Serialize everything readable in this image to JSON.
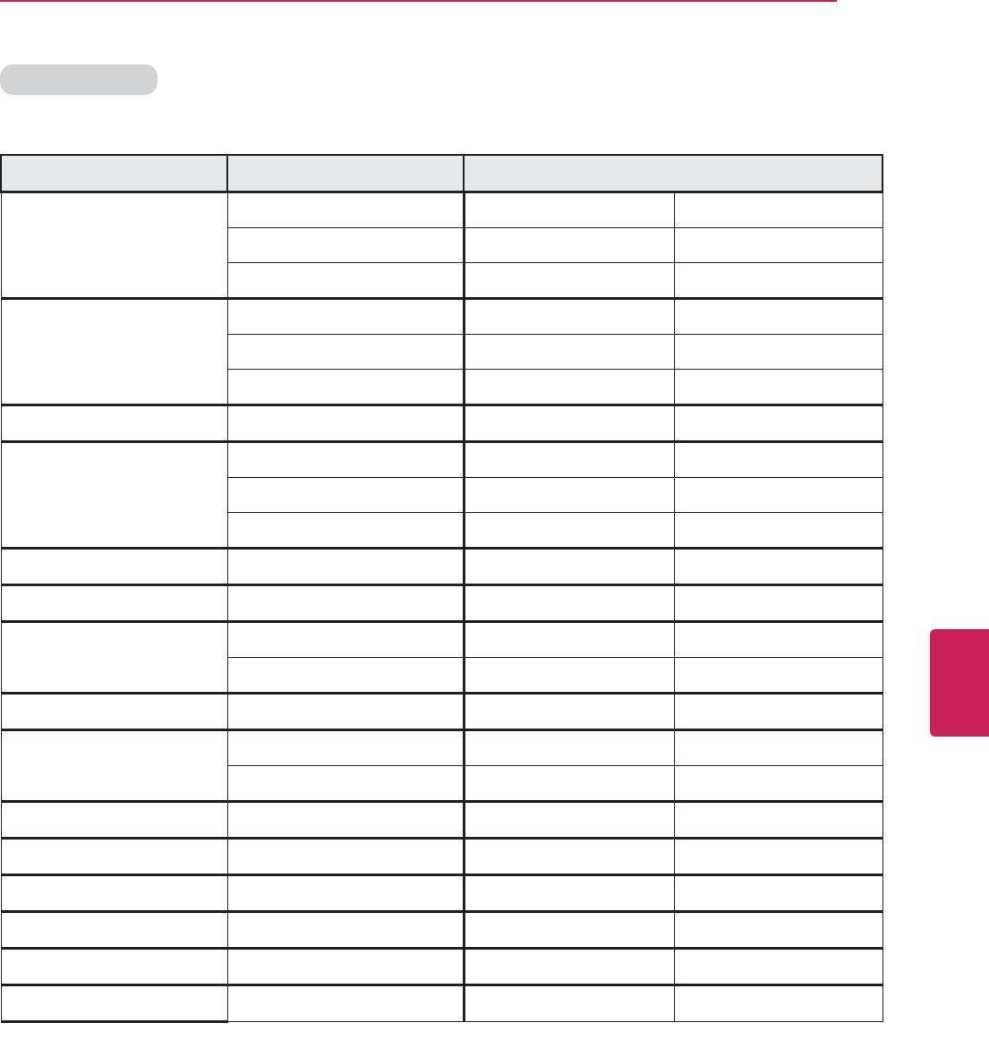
{
  "colors": {
    "accent": "#c8215a",
    "pill": "#d1d3d4",
    "header_bg": "#e6e7e8",
    "border": "#231f20"
  },
  "table": {
    "header": [
      "",
      "",
      ""
    ],
    "rows": []
  }
}
